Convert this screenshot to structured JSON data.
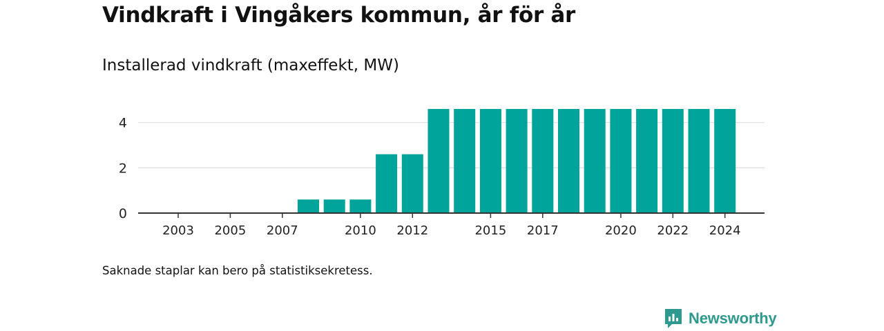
{
  "header": {
    "title": "Vindkraft i Vingåkers kommun, år för år",
    "subtitle": "Installerad vindkraft (maxeffekt, MW)"
  },
  "footer": {
    "note": "Saknade staplar kan bero på statistiksekretess.",
    "brand": "Newsworthy"
  },
  "colors": {
    "bar": "#00a49a",
    "grid": "#dddddd",
    "axis": "#333333",
    "brand": "#2e9a8f"
  },
  "chart_data": {
    "type": "bar",
    "title": "Installerad vindkraft (maxeffekt, MW)",
    "xlabel": "",
    "ylabel": "",
    "categories": [
      "2003",
      "2004",
      "2005",
      "2006",
      "2007",
      "2008",
      "2009",
      "2010",
      "2011",
      "2012",
      "2013",
      "2014",
      "2015",
      "2016",
      "2017",
      "2018",
      "2019",
      "2020",
      "2021",
      "2022",
      "2023",
      "2024"
    ],
    "values": [
      0,
      0,
      0,
      0,
      0,
      0.6,
      0.6,
      0.6,
      2.6,
      2.6,
      4.6,
      4.6,
      4.6,
      4.6,
      4.6,
      4.6,
      4.6,
      4.6,
      4.6,
      4.6,
      4.6,
      4.6
    ],
    "x_tick_labels": [
      "2003",
      "2005",
      "2007",
      "2010",
      "2012",
      "2015",
      "2017",
      "2020",
      "2022",
      "2024"
    ],
    "y_ticks": [
      0,
      2,
      4
    ],
    "ylim": [
      0,
      4.6
    ],
    "grid": true,
    "legend": "none"
  }
}
